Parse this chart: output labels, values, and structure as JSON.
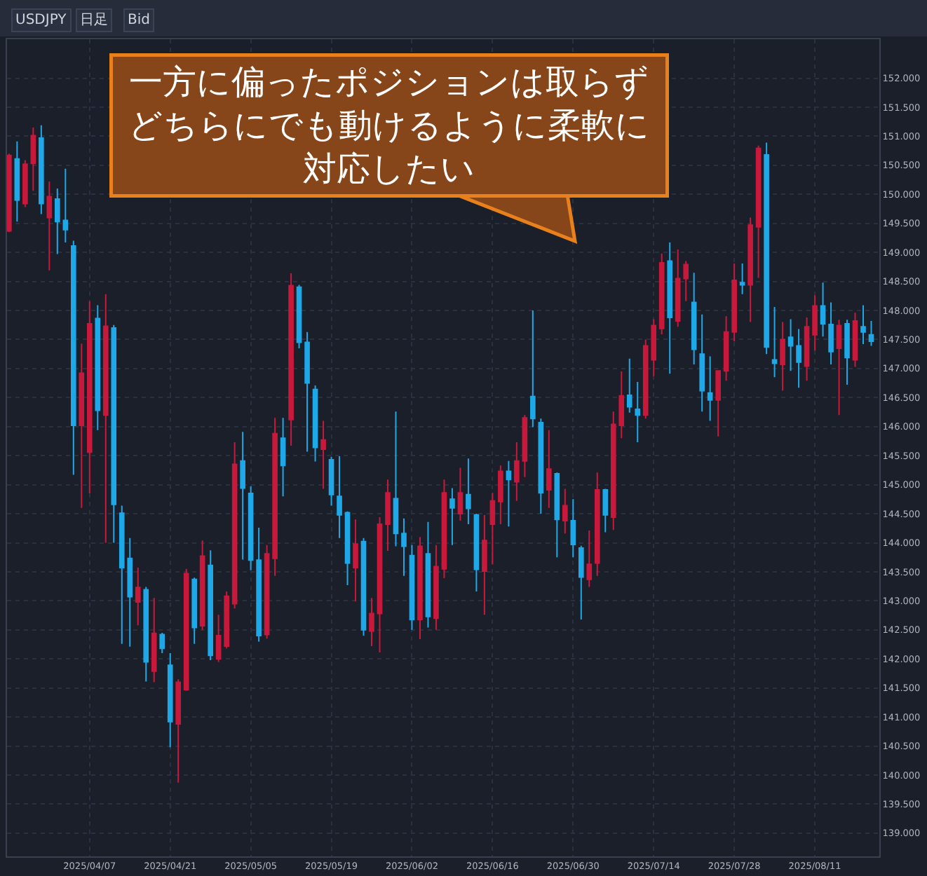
{
  "chart_data": {
    "type": "candlestick",
    "annotations": [
      "一方に偏ったポジションは取らずどちらにでも動けるように柔軟に対応したい",
      "USDJPY",
      "日足",
      "Bid"
    ],
    "categories": [
      null,
      null,
      null,
      null,
      null,
      null,
      null,
      null,
      null,
      null,
      "2025/04/07",
      null,
      null,
      null,
      null,
      null,
      null,
      null,
      null,
      null,
      "2025/04/21",
      null,
      null,
      null,
      null,
      null,
      null,
      null,
      null,
      null,
      "2025/05/05",
      null,
      null,
      null,
      null,
      null,
      null,
      null,
      null,
      null,
      "2025/05/19",
      null,
      null,
      null,
      null,
      null,
      null,
      null,
      null,
      null,
      "2025/06/02",
      null,
      null,
      null,
      null,
      null,
      null,
      null,
      null,
      null,
      "2025/06/16",
      null,
      null,
      null,
      null,
      null,
      null,
      null,
      null,
      null,
      "2025/06/30",
      null,
      null,
      null,
      null,
      null,
      null,
      null,
      null,
      null,
      "2025/07/14",
      null,
      null,
      null,
      null,
      null,
      null,
      null,
      null,
      null,
      "2025/07/28",
      null,
      null,
      null,
      null,
      null,
      null,
      null,
      null,
      null,
      "2025/08/11",
      null,
      null,
      null,
      null,
      null,
      null,
      null
    ],
    "ohlc": [
      [
        149.37,
        150.7,
        149.35,
        150.67
      ],
      [
        150.61,
        150.91,
        149.53,
        149.9
      ],
      [
        149.84,
        150.59,
        149.78,
        150.52
      ],
      [
        150.53,
        151.15,
        150.06,
        151.01
      ],
      [
        150.97,
        151.19,
        149.66,
        149.84
      ],
      [
        149.6,
        150.22,
        148.69,
        149.96
      ],
      [
        149.92,
        150.1,
        148.97,
        149.53
      ],
      [
        149.55,
        150.44,
        149.17,
        149.39
      ],
      [
        149.11,
        149.2,
        145.17,
        146.02
      ],
      [
        146.02,
        147.43,
        144.6,
        146.92
      ],
      [
        145.56,
        148.16,
        144.85,
        147.77
      ],
      [
        147.86,
        148.09,
        145.94,
        146.28
      ],
      [
        146.2,
        148.28,
        144.0,
        147.73
      ],
      [
        147.7,
        147.75,
        144.0,
        144.66
      ],
      [
        144.51,
        144.64,
        142.26,
        143.57
      ],
      [
        143.73,
        144.08,
        142.21,
        143.07
      ],
      [
        142.98,
        143.57,
        142.58,
        143.23
      ],
      [
        143.19,
        143.24,
        141.61,
        141.95
      ],
      [
        141.79,
        143.05,
        141.6,
        142.44
      ],
      [
        142.42,
        142.45,
        142.1,
        142.18
      ],
      [
        141.89,
        142.1,
        140.48,
        140.92
      ],
      [
        140.88,
        141.65,
        139.87,
        141.6
      ],
      [
        141.47,
        143.55,
        141.45,
        143.47
      ],
      [
        143.37,
        143.4,
        142.26,
        142.54
      ],
      [
        142.57,
        144.04,
        142.5,
        143.77
      ],
      [
        143.61,
        143.87,
        141.98,
        142.06
      ],
      [
        142.0,
        142.76,
        141.95,
        142.4
      ],
      [
        142.22,
        143.16,
        142.18,
        143.08
      ],
      [
        142.95,
        145.73,
        142.87,
        145.35
      ],
      [
        145.41,
        145.91,
        143.71,
        144.94
      ],
      [
        144.85,
        144.97,
        143.53,
        143.7
      ],
      [
        143.7,
        144.26,
        142.3,
        142.4
      ],
      [
        142.42,
        143.96,
        142.35,
        143.81
      ],
      [
        143.73,
        146.15,
        143.43,
        145.88
      ],
      [
        145.8,
        146.15,
        144.8,
        145.33
      ],
      [
        146.12,
        148.64,
        145.67,
        148.43
      ],
      [
        148.4,
        148.44,
        147.35,
        147.45
      ],
      [
        147.45,
        147.63,
        145.57,
        146.75
      ],
      [
        146.64,
        146.71,
        145.4,
        145.64
      ],
      [
        145.61,
        146.1,
        144.93,
        145.77
      ],
      [
        145.43,
        145.48,
        144.64,
        144.83
      ],
      [
        144.8,
        145.49,
        144.08,
        144.48
      ],
      [
        144.52,
        144.54,
        143.27,
        143.65
      ],
      [
        143.57,
        144.4,
        142.99,
        143.98
      ],
      [
        144.02,
        144.08,
        142.4,
        142.5
      ],
      [
        142.48,
        143.05,
        142.22,
        142.78
      ],
      [
        142.78,
        144.44,
        142.11,
        144.32
      ],
      [
        144.32,
        145.09,
        143.86,
        144.86
      ],
      [
        144.76,
        146.26,
        143.94,
        144.16
      ],
      [
        144.16,
        144.42,
        143.43,
        143.94
      ],
      [
        143.78,
        143.96,
        142.5,
        142.68
      ],
      [
        142.68,
        144.1,
        142.34,
        143.94
      ],
      [
        143.81,
        144.36,
        142.54,
        142.73
      ],
      [
        142.7,
        143.96,
        142.5,
        143.59
      ],
      [
        143.55,
        145.09,
        143.39,
        144.86
      ],
      [
        144.75,
        144.94,
        143.96,
        144.6
      ],
      [
        144.5,
        145.29,
        144.38,
        144.86
      ],
      [
        144.83,
        145.45,
        144.32,
        144.59
      ],
      [
        144.48,
        144.5,
        143.16,
        143.54
      ],
      [
        143.51,
        144.48,
        142.76,
        144.04
      ],
      [
        144.32,
        144.86,
        143.63,
        144.72
      ],
      [
        144.71,
        145.33,
        144.32,
        145.23
      ],
      [
        145.23,
        145.41,
        144.28,
        145.09
      ],
      [
        145.05,
        145.73,
        144.72,
        145.41
      ],
      [
        145.41,
        146.2,
        145.13,
        146.15
      ],
      [
        146.52,
        148.0,
        145.99,
        146.14
      ],
      [
        146.07,
        146.14,
        144.5,
        144.86
      ],
      [
        144.91,
        145.94,
        144.6,
        145.27
      ],
      [
        145.19,
        145.21,
        143.75,
        144.4
      ],
      [
        144.38,
        144.93,
        144.16,
        144.64
      ],
      [
        144.38,
        144.75,
        143.75,
        143.97
      ],
      [
        143.91,
        143.95,
        142.68,
        143.41
      ],
      [
        143.37,
        144.21,
        143.24,
        143.63
      ],
      [
        143.65,
        145.21,
        143.43,
        144.91
      ],
      [
        144.91,
        144.93,
        144.18,
        144.48
      ],
      [
        144.44,
        146.26,
        144.22,
        146.04
      ],
      [
        146.02,
        146.95,
        145.8,
        146.53
      ],
      [
        146.54,
        147.17,
        146.24,
        146.34
      ],
      [
        146.3,
        146.77,
        145.73,
        146.2
      ],
      [
        146.2,
        147.5,
        146.14,
        147.39
      ],
      [
        147.15,
        147.85,
        146.87,
        147.74
      ],
      [
        147.69,
        148.98,
        147.59,
        148.82
      ],
      [
        148.85,
        149.17,
        146.91,
        147.88
      ],
      [
        147.82,
        149.05,
        147.72,
        148.55
      ],
      [
        148.55,
        148.85,
        148.16,
        148.79
      ],
      [
        148.14,
        148.65,
        147.07,
        147.33
      ],
      [
        147.25,
        147.93,
        146.26,
        146.62
      ],
      [
        146.58,
        147.21,
        146.1,
        146.46
      ],
      [
        146.46,
        146.97,
        145.83,
        146.96
      ],
      [
        146.96,
        147.9,
        146.79,
        147.63
      ],
      [
        147.63,
        148.81,
        147.47,
        148.52
      ],
      [
        148.48,
        148.81,
        148.28,
        148.44
      ],
      [
        148.44,
        149.6,
        147.8,
        149.47
      ],
      [
        149.44,
        150.84,
        148.56,
        150.79
      ],
      [
        150.68,
        150.89,
        147.25,
        147.37
      ],
      [
        147.15,
        148.06,
        146.85,
        147.09
      ],
      [
        147.07,
        147.8,
        146.62,
        147.5
      ],
      [
        147.54,
        147.85,
        146.96,
        147.39
      ],
      [
        147.39,
        147.68,
        146.67,
        147.11
      ],
      [
        147.04,
        147.88,
        146.79,
        147.72
      ],
      [
        147.58,
        148.26,
        147.31,
        148.08
      ],
      [
        148.08,
        148.48,
        147.55,
        147.77
      ],
      [
        147.76,
        148.14,
        147.07,
        147.29
      ],
      [
        147.35,
        147.84,
        146.2,
        147.74
      ],
      [
        147.77,
        147.84,
        146.72,
        147.19
      ],
      [
        147.15,
        147.96,
        147.03,
        147.82
      ],
      [
        147.72,
        148.09,
        147.42,
        147.63
      ],
      [
        147.58,
        147.82,
        147.39,
        147.47
      ]
    ],
    "colors": [
      "#c8193c",
      "#1fa8e8",
      "#c8193c",
      "#c8193c",
      "#1fa8e8",
      "#c8193c",
      "#1fa8e8",
      "#1fa8e8",
      "#1fa8e8",
      "#c8193c",
      "#c8193c",
      "#1fa8e8",
      "#c8193c",
      "#1fa8e8",
      "#1fa8e8",
      "#1fa8e8",
      "#c8193c",
      "#1fa8e8",
      "#c8193c",
      "#1fa8e8",
      "#1fa8e8",
      "#c8193c",
      "#c8193c",
      "#1fa8e8",
      "#c8193c",
      "#1fa8e8",
      "#c8193c",
      "#c8193c",
      "#c8193c",
      "#1fa8e8",
      "#1fa8e8",
      "#1fa8e8",
      "#c8193c",
      "#c8193c",
      "#1fa8e8",
      "#c8193c",
      "#1fa8e8",
      "#1fa8e8",
      "#1fa8e8",
      "#c8193c",
      "#1fa8e8",
      "#1fa8e8",
      "#1fa8e8",
      "#c8193c",
      "#1fa8e8",
      "#c8193c",
      "#c8193c",
      "#c8193c",
      "#1fa8e8",
      "#1fa8e8",
      "#1fa8e8",
      "#c8193c",
      "#1fa8e8",
      "#c8193c",
      "#c8193c",
      "#1fa8e8",
      "#c8193c",
      "#1fa8e8",
      "#1fa8e8",
      "#c8193c",
      "#c8193c",
      "#c8193c",
      "#1fa8e8",
      "#c8193c",
      "#c8193c",
      "#1fa8e8",
      "#1fa8e8",
      "#c8193c",
      "#1fa8e8",
      "#c8193c",
      "#1fa8e8",
      "#1fa8e8",
      "#c8193c",
      "#c8193c",
      "#1fa8e8",
      "#c8193c",
      "#c8193c",
      "#1fa8e8",
      "#1fa8e8",
      "#c8193c",
      "#c8193c",
      "#c8193c",
      "#1fa8e8",
      "#c8193c",
      "#c8193c",
      "#1fa8e8",
      "#1fa8e8",
      "#1fa8e8",
      "#c8193c",
      "#c8193c",
      "#c8193c",
      "#1fa8e8",
      "#c8193c",
      "#c8193c",
      "#1fa8e8",
      "#1fa8e8",
      "#c8193c",
      "#1fa8e8",
      "#1fa8e8",
      "#c8193c",
      "#c8193c",
      "#1fa8e8",
      "#1fa8e8",
      "#c8193c",
      "#1fa8e8",
      "#c8193c",
      "#1fa8e8",
      "#1fa8e8"
    ],
    "ylim": [
      138.6,
      152.67
    ],
    "yticks": [
      {
        "value": 139,
        "label": "139.000"
      },
      {
        "value": 139.5,
        "label": "139.500"
      },
      {
        "value": 140,
        "label": "140.000"
      },
      {
        "value": 140.5,
        "label": "140.500"
      },
      {
        "value": 141,
        "label": "141.000"
      },
      {
        "value": 141.5,
        "label": "141.500"
      },
      {
        "value": 142,
        "label": "142.000"
      },
      {
        "value": 142.5,
        "label": "142.500"
      },
      {
        "value": 143,
        "label": "143.000"
      },
      {
        "value": 143.5,
        "label": "143.500"
      },
      {
        "value": 144,
        "label": "144.000"
      },
      {
        "value": 144.5,
        "label": "144.500"
      },
      {
        "value": 145,
        "label": "145.000"
      },
      {
        "value": 145.5,
        "label": "145.500"
      },
      {
        "value": 146,
        "label": "146.000"
      },
      {
        "value": 146.5,
        "label": "146.500"
      },
      {
        "value": 147,
        "label": "147.000"
      },
      {
        "value": 147.5,
        "label": "147.500"
      },
      {
        "value": 148,
        "label": "148.000"
      },
      {
        "value": 148.5,
        "label": "148.500"
      },
      {
        "value": 149,
        "label": "149.000"
      },
      {
        "value": 149.5,
        "label": "149.500"
      },
      {
        "value": 150,
        "label": "150.000"
      },
      {
        "value": 150.5,
        "label": "150.500"
      },
      {
        "value": 151,
        "label": "151.000"
      },
      {
        "value": 151.5,
        "label": "151.500"
      },
      {
        "value": 152,
        "label": "152.000"
      }
    ],
    "grid": true
  }
}
